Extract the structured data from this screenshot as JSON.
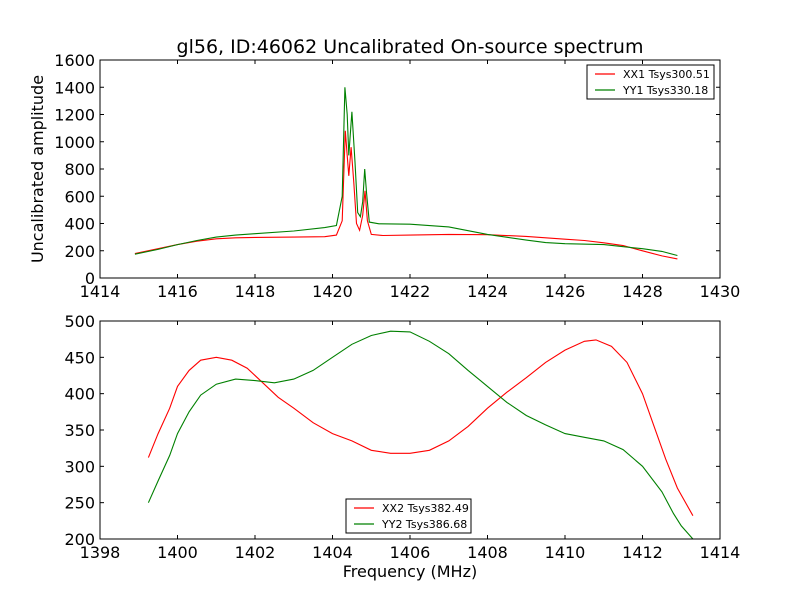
{
  "chart_data": [
    {
      "type": "line",
      "title": "gl56, ID:46062 Uncalibrated On-source spectrum",
      "xlabel": "",
      "ylabel": "Uncalibrated amplitude",
      "xlim": [
        1414,
        1430
      ],
      "ylim": [
        0,
        1600
      ],
      "xticks": [
        1414,
        1416,
        1418,
        1420,
        1422,
        1424,
        1426,
        1428,
        1430
      ],
      "yticks": [
        0,
        200,
        400,
        600,
        800,
        1000,
        1200,
        1400,
        1600
      ],
      "legend_position": "top-right",
      "grid": false,
      "series": [
        {
          "name": "XX1 Tsys300.51",
          "color": "#ff0000",
          "points": [
            [
              1414.9,
              180
            ],
            [
              1415.5,
              215
            ],
            [
              1416.0,
              245
            ],
            [
              1416.5,
              270
            ],
            [
              1417.0,
              288
            ],
            [
              1417.5,
              295
            ],
            [
              1418.0,
              298
            ],
            [
              1419.0,
              300
            ],
            [
              1419.8,
              303
            ],
            [
              1420.1,
              315
            ],
            [
              1420.25,
              420
            ],
            [
              1420.33,
              1080
            ],
            [
              1420.38,
              900
            ],
            [
              1420.42,
              750
            ],
            [
              1420.48,
              960
            ],
            [
              1420.55,
              700
            ],
            [
              1420.62,
              400
            ],
            [
              1420.7,
              350
            ],
            [
              1420.78,
              460
            ],
            [
              1420.84,
              640
            ],
            [
              1420.9,
              420
            ],
            [
              1421.0,
              320
            ],
            [
              1421.3,
              312
            ],
            [
              1422.0,
              315
            ],
            [
              1423.0,
              320
            ],
            [
              1424.0,
              318
            ],
            [
              1425.0,
              305
            ],
            [
              1426.0,
              285
            ],
            [
              1426.5,
              275
            ],
            [
              1427.0,
              258
            ],
            [
              1427.5,
              238
            ],
            [
              1428.0,
              200
            ],
            [
              1428.5,
              162
            ],
            [
              1428.9,
              140
            ]
          ]
        },
        {
          "name": "YY1 Tsys330.18",
          "color": "#008000",
          "points": [
            [
              1414.9,
              175
            ],
            [
              1415.5,
              210
            ],
            [
              1416.0,
              245
            ],
            [
              1416.5,
              275
            ],
            [
              1417.0,
              300
            ],
            [
              1417.5,
              315
            ],
            [
              1418.0,
              325
            ],
            [
              1419.0,
              345
            ],
            [
              1419.8,
              370
            ],
            [
              1420.1,
              385
            ],
            [
              1420.25,
              600
            ],
            [
              1420.32,
              1400
            ],
            [
              1420.38,
              1200
            ],
            [
              1420.42,
              900
            ],
            [
              1420.5,
              1220
            ],
            [
              1420.58,
              850
            ],
            [
              1420.65,
              480
            ],
            [
              1420.72,
              450
            ],
            [
              1420.78,
              560
            ],
            [
              1420.83,
              800
            ],
            [
              1420.88,
              620
            ],
            [
              1420.95,
              410
            ],
            [
              1421.2,
              398
            ],
            [
              1422.0,
              395
            ],
            [
              1423.0,
              375
            ],
            [
              1424.0,
              320
            ],
            [
              1425.0,
              278
            ],
            [
              1425.5,
              260
            ],
            [
              1426.0,
              252
            ],
            [
              1427.0,
              245
            ],
            [
              1428.0,
              215
            ],
            [
              1428.5,
              195
            ],
            [
              1428.9,
              165
            ]
          ]
        }
      ]
    },
    {
      "type": "line",
      "title": "",
      "xlabel": "Frequency (MHz)",
      "ylabel": "",
      "xlim": [
        1398,
        1414
      ],
      "ylim": [
        200,
        500
      ],
      "xticks": [
        1398,
        1400,
        1402,
        1404,
        1406,
        1408,
        1410,
        1412,
        1414
      ],
      "yticks": [
        200,
        250,
        300,
        350,
        400,
        450,
        500
      ],
      "legend_position": "lower-center",
      "grid": false,
      "series": [
        {
          "name": "XX2 Tsys382.49",
          "color": "#ff0000",
          "points": [
            [
              1399.25,
              312
            ],
            [
              1399.5,
              345
            ],
            [
              1399.8,
              380
            ],
            [
              1400.0,
              410
            ],
            [
              1400.3,
              432
            ],
            [
              1400.6,
              446
            ],
            [
              1401.0,
              450
            ],
            [
              1401.4,
              446
            ],
            [
              1401.8,
              435
            ],
            [
              1402.2,
              415
            ],
            [
              1402.6,
              395
            ],
            [
              1403.0,
              380
            ],
            [
              1403.5,
              360
            ],
            [
              1404.0,
              345
            ],
            [
              1404.5,
              335
            ],
            [
              1405.0,
              322
            ],
            [
              1405.5,
              318
            ],
            [
              1406.0,
              318
            ],
            [
              1406.5,
              322
            ],
            [
              1407.0,
              335
            ],
            [
              1407.5,
              355
            ],
            [
              1408.0,
              380
            ],
            [
              1408.5,
              402
            ],
            [
              1409.0,
              422
            ],
            [
              1409.5,
              443
            ],
            [
              1410.0,
              460
            ],
            [
              1410.5,
              472
            ],
            [
              1410.8,
              474
            ],
            [
              1411.2,
              465
            ],
            [
              1411.6,
              443
            ],
            [
              1412.0,
              400
            ],
            [
              1412.3,
              355
            ],
            [
              1412.6,
              310
            ],
            [
              1412.9,
              270
            ],
            [
              1413.3,
              232
            ]
          ]
        },
        {
          "name": "YY2 Tsys386.68",
          "color": "#008000",
          "points": [
            [
              1399.25,
              250
            ],
            [
              1399.5,
              280
            ],
            [
              1399.8,
              315
            ],
            [
              1400.0,
              345
            ],
            [
              1400.3,
              375
            ],
            [
              1400.6,
              398
            ],
            [
              1401.0,
              413
            ],
            [
              1401.5,
              420
            ],
            [
              1402.0,
              418
            ],
            [
              1402.5,
              415
            ],
            [
              1403.0,
              420
            ],
            [
              1403.5,
              432
            ],
            [
              1404.0,
              450
            ],
            [
              1404.5,
              468
            ],
            [
              1405.0,
              480
            ],
            [
              1405.5,
              486
            ],
            [
              1406.0,
              485
            ],
            [
              1406.5,
              472
            ],
            [
              1407.0,
              455
            ],
            [
              1407.5,
              432
            ],
            [
              1408.0,
              410
            ],
            [
              1408.5,
              388
            ],
            [
              1409.0,
              370
            ],
            [
              1409.5,
              357
            ],
            [
              1410.0,
              345
            ],
            [
              1410.5,
              340
            ],
            [
              1411.0,
              335
            ],
            [
              1411.5,
              323
            ],
            [
              1412.0,
              300
            ],
            [
              1412.5,
              265
            ],
            [
              1412.8,
              235
            ],
            [
              1413.0,
              218
            ],
            [
              1413.3,
              200
            ]
          ]
        }
      ]
    }
  ]
}
